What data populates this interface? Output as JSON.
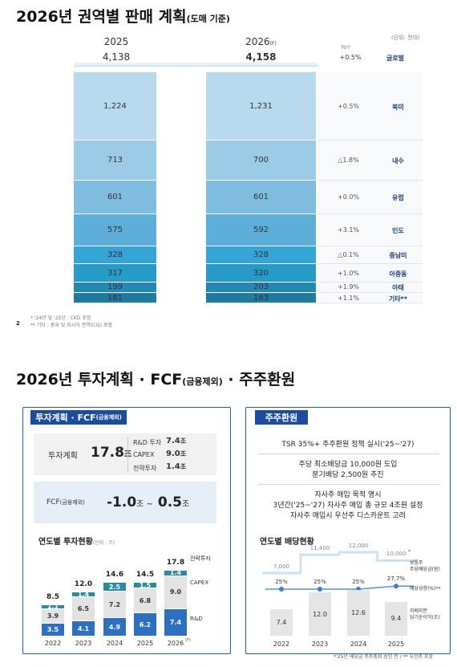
{
  "sales": {
    "title": "2026년 권역별 판매 계획",
    "title_sub": "(도매 기준)",
    "unit": "(단위: 천대)",
    "col2025": "2025",
    "col2026": "2026",
    "col2026_sup": "(F)",
    "total2025": "4,138",
    "total2026": "4,158",
    "yoy_header": "YoY",
    "total_yoy": "+0.5%",
    "total_region": "글로벌",
    "rows": [
      {
        "v25": "1,224",
        "v26": "1,231",
        "yoy": "+0.5%",
        "region": "북미"
      },
      {
        "v25": "713",
        "v26": "700",
        "yoy": "△1.8%",
        "region": "내수"
      },
      {
        "v25": "601",
        "v26": "601",
        "yoy": "+0.0%",
        "region": "유럽"
      },
      {
        "v25": "575",
        "v26": "592",
        "yoy": "+3.1%",
        "region": "인도"
      },
      {
        "v25": "328",
        "v26": "328",
        "yoy": "△0.1%",
        "region": "중남미"
      },
      {
        "v25": "317",
        "v26": "320",
        "yoy": "+1.0%",
        "region": "아중동"
      },
      {
        "v25": "199",
        "v26": "203",
        "yoy": "+1.9%",
        "region": "아태"
      },
      {
        "v25": "181",
        "v26": "183",
        "yoy": "+1.1%",
        "region": "기타**"
      }
    ],
    "segment_colors": [
      "#b9d9ec",
      "#9ccbe5",
      "#7fbcde",
      "#5dafd9",
      "#34a5d4",
      "#279bc7",
      "#2488b1",
      "#1f7aa1"
    ],
    "note1": "* '24년 및 '25년 : CKD 포함",
    "page_num": "2",
    "note2": "** 기타 : 중국 및 러시아 권역(CIS) 포함"
  },
  "invest": {
    "title": "2026년 투자계획 · FCF",
    "title_sub": "(금융제외)",
    "title_tail": "· 주주환원",
    "panel_tag": "투자계획 · FCF",
    "panel_tag_sub": "(금융제외)",
    "plan_label": "투자계획",
    "plan_value": "17.8",
    "plan_unit": "조",
    "breakdown": [
      {
        "label": "R&D 투자",
        "value": "7.4",
        "unit": "조"
      },
      {
        "label": "CAPEX",
        "value": "9.0",
        "unit": "조"
      },
      {
        "label": "전략투자",
        "value": "1.4",
        "unit": "조"
      }
    ],
    "fcf_label": "FCF",
    "fcf_label_sub": "(금융제외)",
    "fcf_low": "-1.0",
    "fcf_unit1": "조 ~",
    "fcf_high": "0.5",
    "fcf_unit2": "조",
    "chart_title": "연도별 투자현황",
    "chart_unit": "(단위 : 조)",
    "legend": [
      "전략투자",
      "CAPEX",
      "R&D"
    ],
    "year_suffix_2026": "(F)"
  },
  "chart_data": [
    {
      "type": "bar",
      "title": "연도별 투자현황",
      "categories": [
        "2022",
        "2023",
        "2024",
        "2025",
        "2026"
      ],
      "series": [
        {
          "name": "R&D",
          "values": [
            3.5,
            4.1,
            4.9,
            6.2,
            7.4
          ],
          "color": "#2e6fc0"
        },
        {
          "name": "CAPEX",
          "values": [
            3.9,
            6.5,
            7.2,
            6.8,
            9.0
          ],
          "color": "#e3e3e3"
        },
        {
          "name": "전략투자",
          "values": [
            1.1,
            1.4,
            2.5,
            1.5,
            1.4
          ],
          "color": "#2a8aa0"
        }
      ],
      "totals": [
        "8.5",
        "12.0",
        "14.6",
        "14.5",
        "17.8"
      ],
      "labels": {
        "R&D": [
          "3.5",
          "4.1",
          "4.9",
          "6.2",
          "7.4"
        ],
        "CAPEX": [
          "3.9",
          "6.5",
          "7.2",
          "6.8",
          "9.0"
        ],
        "전략투자": [
          "1.1",
          "1.4",
          "2.5",
          "1.5",
          "1.4"
        ]
      }
    },
    {
      "type": "bar",
      "title": "연도별 배당현황",
      "categories": [
        "2022",
        "2023",
        "2024",
        "2025"
      ],
      "series": [
        {
          "name": "지배지분 당기순이익(조)",
          "values": [
            7.4,
            12.0,
            12.6,
            9.4
          ],
          "color": "#e5e5e5"
        },
        {
          "name": "보통주 주당배당금(원)",
          "values": [
            7000,
            11400,
            12000,
            10000
          ]
        },
        {
          "name": "배당성향(%)",
          "values": [
            25,
            25,
            25,
            27.7
          ]
        }
      ]
    }
  ],
  "return": {
    "panel_tag": "주주환원",
    "lines": [
      [
        "TSR 35%+ 주주환원 정책 실시('25~'27)"
      ],
      [
        "주당 최소배당금 10,000원 도입",
        "분기배당 2,500원 추진"
      ],
      [
        "자사주 매입 목적 명시",
        "3년간('25~'27) 자사주 매입 총 규모 4조원 설정",
        "자사주 매입시 우선주 디스카운트 고려"
      ]
    ],
    "chart_title": "연도별 배당현황",
    "dps_labels": [
      "7,000",
      "11,400",
      "12,000",
      "10,000"
    ],
    "dps_mark": "*",
    "payout_labels": [
      "25%",
      "25%",
      "25%",
      "27.7%"
    ],
    "ni_labels": [
      "7.4",
      "12.0",
      "12.6",
      "9.4"
    ],
    "legend_dps": [
      "보통주",
      "주당배당금(원)"
    ],
    "legend_payout": "배당성향(%)",
    "legend_payout_mark": "**",
    "legend_ni": [
      "지배지분",
      "당기순이익(조)"
    ],
    "years": [
      "2022",
      "2023",
      "2024",
      "2025"
    ],
    "note": "*'25년 배당금 주주총회 승인 전 / ** 우선주 포함"
  }
}
